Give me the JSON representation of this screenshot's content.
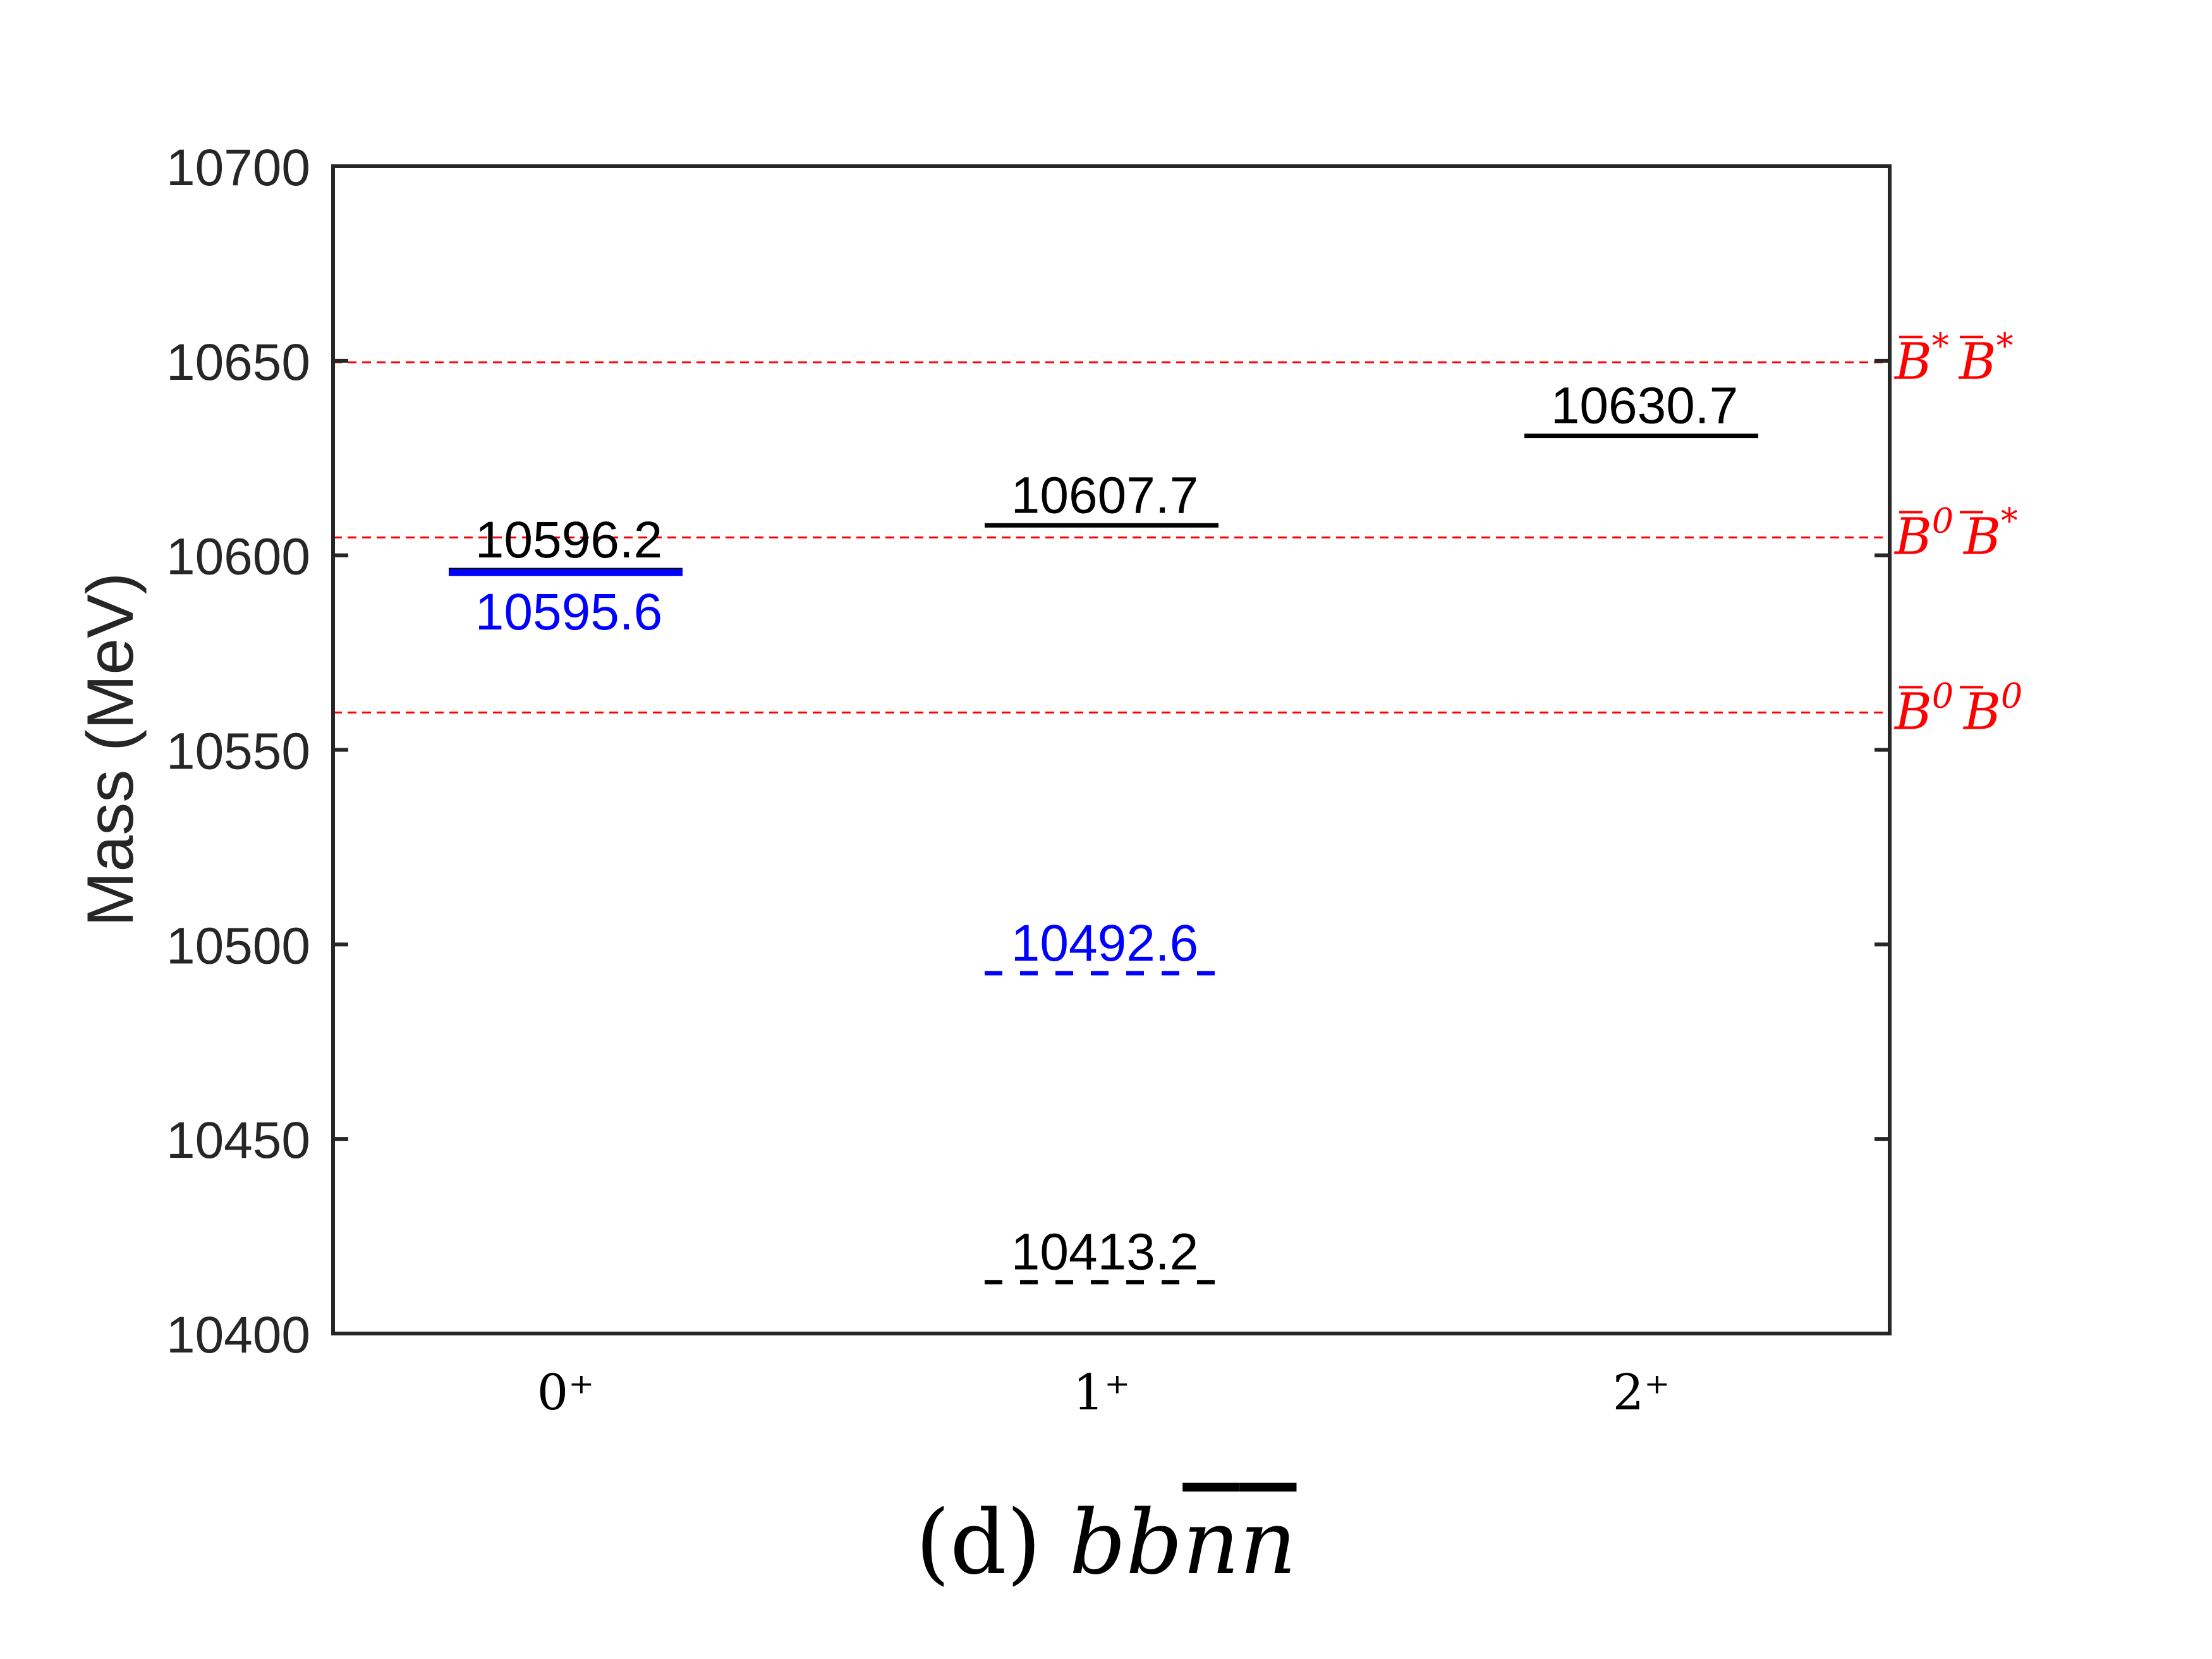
{
  "chart_data": {
    "type": "line",
    "ylabel": "Mass (MeV)",
    "ylim": [
      10400,
      10700
    ],
    "yticks": [
      10400,
      10450,
      10500,
      10550,
      10600,
      10650,
      10700
    ],
    "categories": [
      "0⁺",
      "1⁺",
      "2⁺"
    ],
    "grid": false,
    "levels": [
      {
        "category": "0⁺",
        "value": 10596.2,
        "label": "10596.2",
        "color": "#000000",
        "style": "solid"
      },
      {
        "category": "0⁺",
        "value": 10595.6,
        "label": "10595.6",
        "color": "#0000ff",
        "style": "solid"
      },
      {
        "category": "1⁺",
        "value": 10607.7,
        "label": "10607.7",
        "color": "#000000",
        "style": "solid"
      },
      {
        "category": "1⁺",
        "value": 10492.6,
        "label": "10492.6",
        "color": "#0000ff",
        "style": "dashed"
      },
      {
        "category": "1⁺",
        "value": 10413.2,
        "label": "10413.2",
        "color": "#000000",
        "style": "dashed"
      },
      {
        "category": "2⁺",
        "value": 10630.7,
        "label": "10630.7",
        "color": "#000000",
        "style": "solid"
      }
    ],
    "thresholds": [
      {
        "value": 10649.6,
        "base1": "B",
        "sup1": "*",
        "base2": "B",
        "sup2": "*"
      },
      {
        "value": 10604.6,
        "base1": "B",
        "sup1": "0",
        "base2": "B",
        "sup2": "*"
      },
      {
        "value": 10559.6,
        "base1": "B",
        "sup1": "0",
        "base2": "B",
        "sup2": "0"
      }
    ],
    "threshold_color": "#ff0000"
  },
  "caption": {
    "prefix": "(d) ",
    "quarks_plain": "bb",
    "quarks_bar1": "n",
    "quarks_bar2": "n"
  }
}
